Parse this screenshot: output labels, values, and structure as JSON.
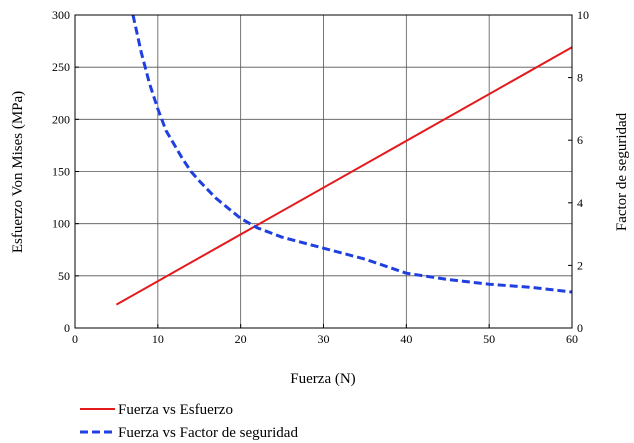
{
  "chart_data": {
    "type": "line",
    "title": "",
    "xlabel": "Fuerza (N)",
    "ylabel": "Esfuerzo Von Mises (MPa)",
    "y2label": "Factor de seguridad",
    "xlim": [
      0,
      60
    ],
    "ylim": [
      0,
      300
    ],
    "y2lim": [
      0,
      10
    ],
    "xticks": [
      "0",
      "10",
      "20",
      "30",
      "40",
      "50",
      "60"
    ],
    "yticks": [
      "0",
      "50",
      "100",
      "150",
      "200",
      "250",
      "300"
    ],
    "y2ticks": [
      "0",
      "2",
      "4",
      "6",
      "8",
      "10"
    ],
    "grid": true,
    "legend_position": "bottom-left",
    "series": [
      {
        "name": "Fuerza vs Esfuerzo",
        "axis": "left",
        "color": "#e41a1c",
        "style": "solid",
        "x": [
          5,
          60
        ],
        "y": [
          22.4,
          269
        ]
      },
      {
        "name": "Fuerza vs Factor de seguridad",
        "axis": "right",
        "color": "#1f3fe0",
        "style": "dashed",
        "x": [
          7,
          8,
          9,
          10,
          11,
          12,
          13,
          14,
          15,
          17,
          20,
          22,
          25,
          30,
          35,
          40,
          45,
          50,
          55,
          60
        ],
        "y": [
          10.0,
          8.8,
          7.8,
          7.0,
          6.3,
          5.85,
          5.4,
          5.0,
          4.7,
          4.15,
          3.5,
          3.2,
          2.9,
          2.55,
          2.2,
          1.75,
          1.55,
          1.4,
          1.3,
          1.15
        ]
      }
    ]
  }
}
